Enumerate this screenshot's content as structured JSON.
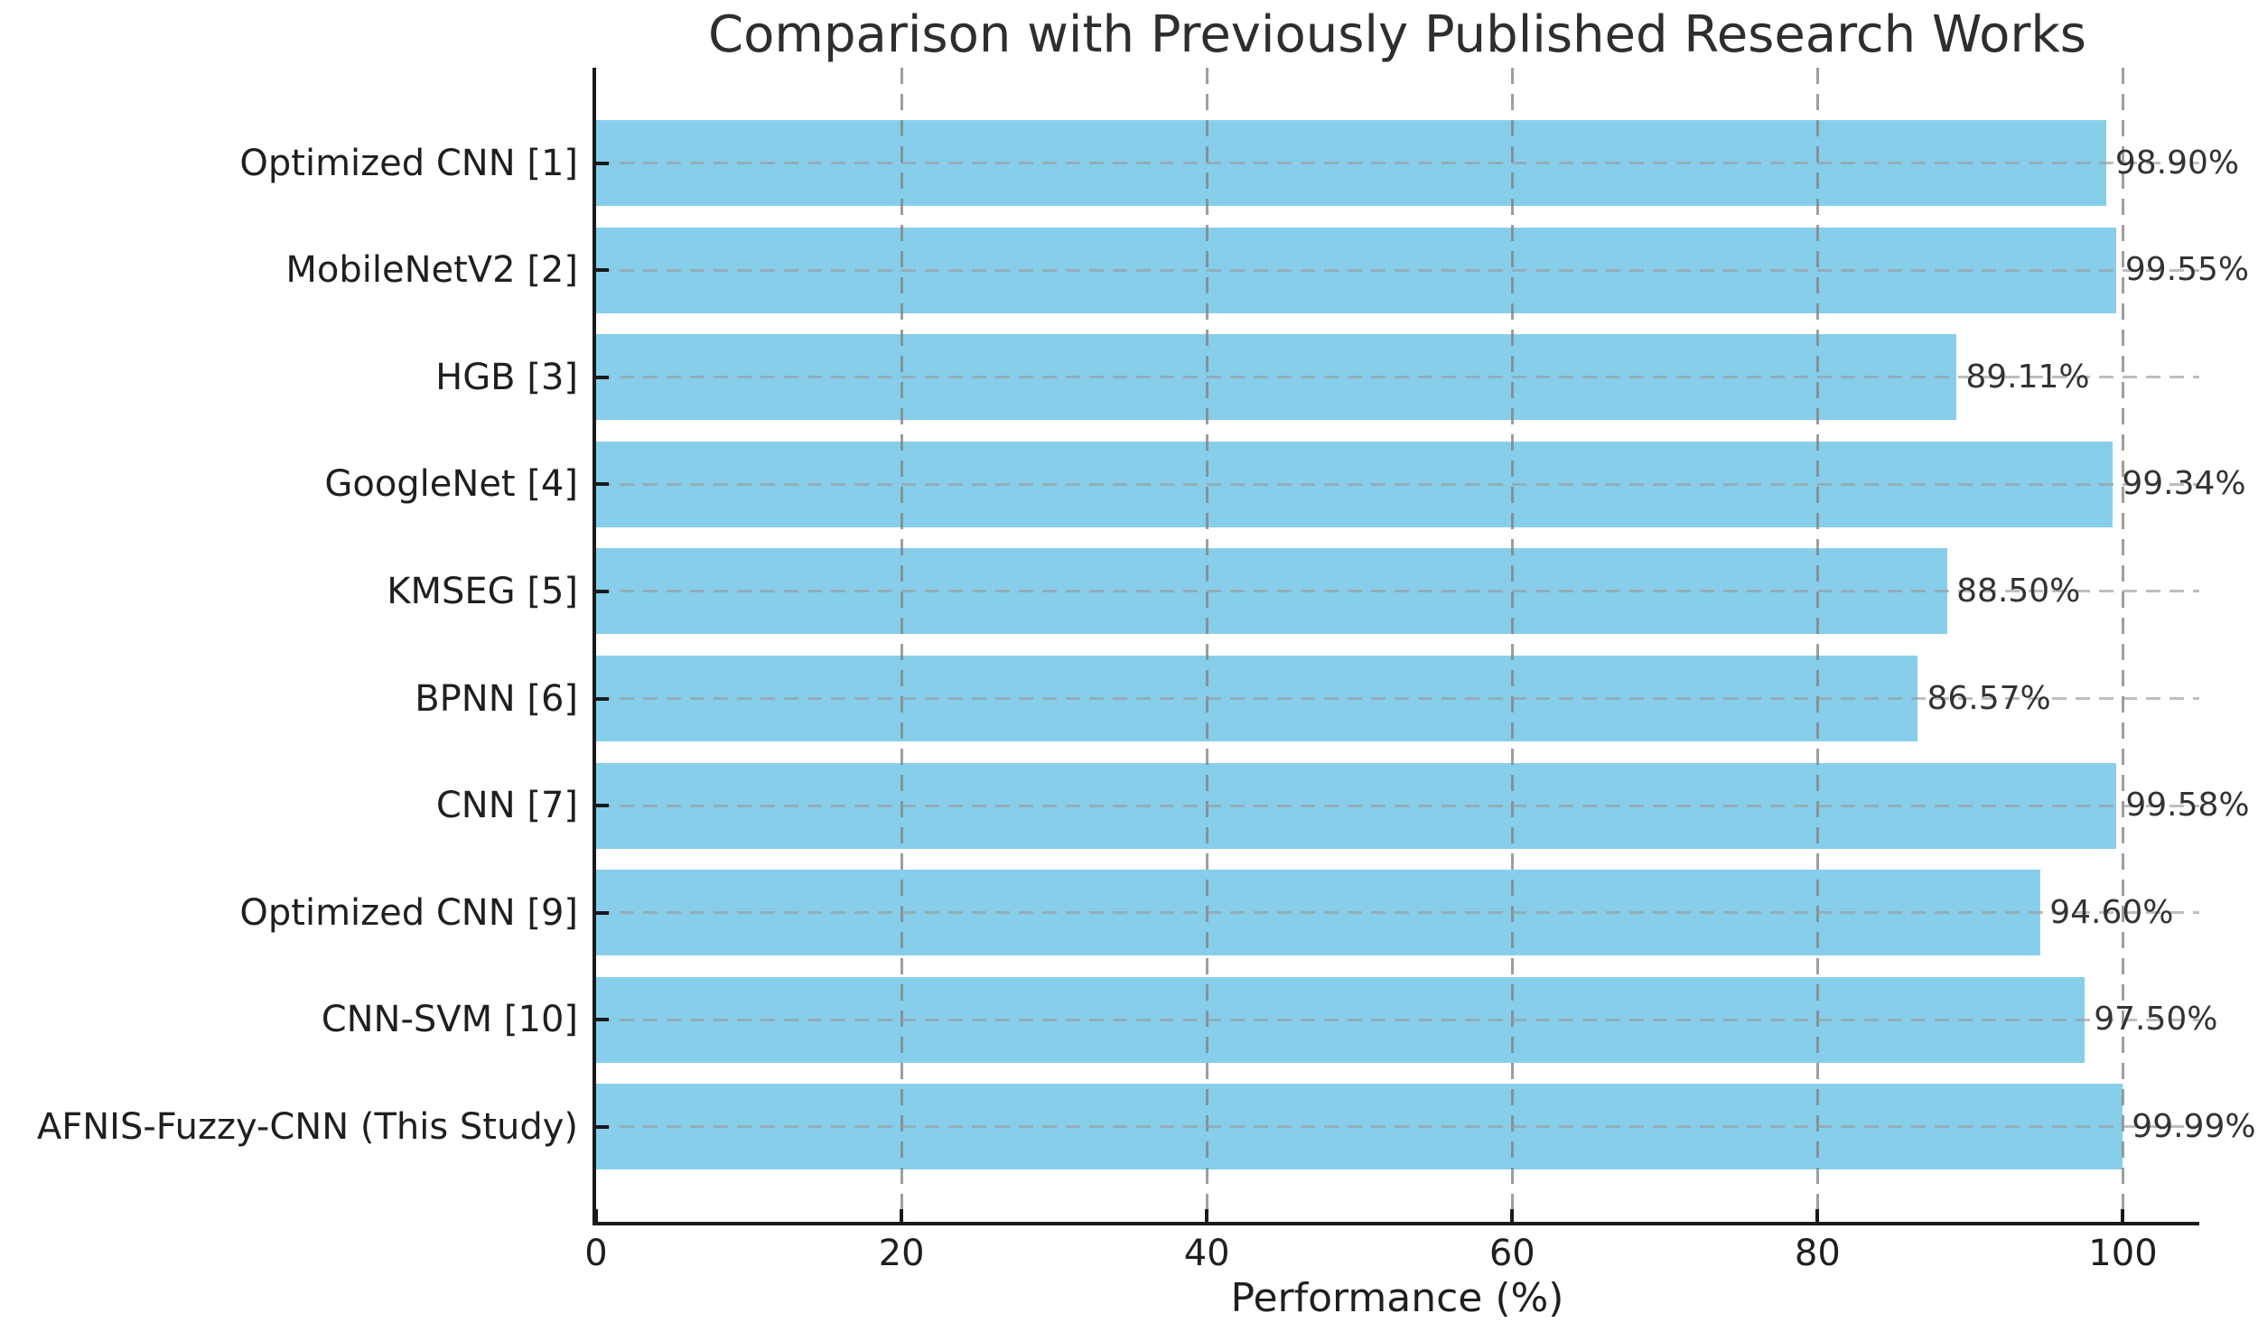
{
  "title": "Comparison with Previously Published Research Works",
  "xaxis": {
    "label": "Performance (%)",
    "ticks": [
      "0",
      "20",
      "40",
      "60",
      "80",
      "100"
    ]
  },
  "colors": {
    "bar": "#87CEEB",
    "grid": "#9b9b9b",
    "spine": "#1a1a1a",
    "text": "#1f1f1f"
  },
  "chart_data": {
    "type": "bar",
    "orientation": "horizontal",
    "title": "Comparison with Previously Published Research Works",
    "xlabel": "Performance (%)",
    "ylabel": "",
    "xlim": [
      0,
      105
    ],
    "xticks": [
      0,
      20,
      40,
      60,
      80,
      100
    ],
    "grid": true,
    "bar_color": "#87CEEB",
    "categories": [
      "Optimized CNN [1]",
      "MobileNetV2 [2]",
      "HGB [3]",
      "GoogleNet [4]",
      "KMSEG [5]",
      "BPNN [6]",
      "CNN [7]",
      "Optimized CNN [9]",
      "CNN-SVM [10]",
      "AFNIS-Fuzzy-CNN (This Study)"
    ],
    "values": [
      98.9,
      99.55,
      89.11,
      99.34,
      88.5,
      86.57,
      99.58,
      94.6,
      97.5,
      99.99
    ],
    "value_labels": [
      "98.90%",
      "99.55%",
      "89.11%",
      "99.34%",
      "88.50%",
      "86.57%",
      "99.58%",
      "94.60%",
      "97.50%",
      "99.99%"
    ]
  }
}
